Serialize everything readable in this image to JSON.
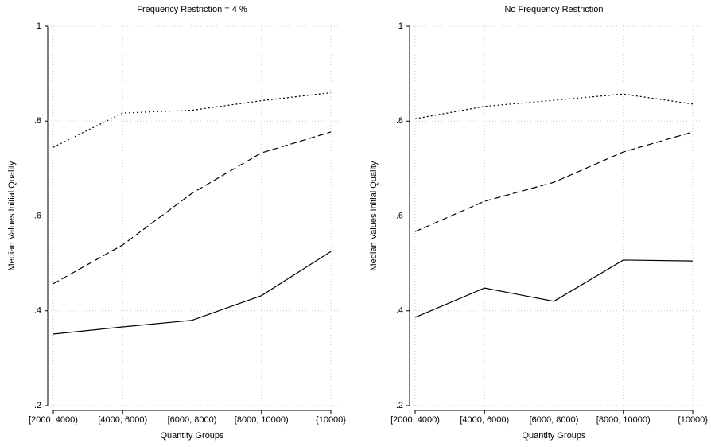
{
  "chart_data": [
    {
      "type": "line",
      "title": "Frequency Restriction = 4 %",
      "xlabel": "Quantity Groups",
      "ylabel": "Median Values Initial Quality",
      "categories": [
        "[2000, 4000)",
        "[4000, 6000)",
        "[6000, 8000)",
        "[8000, 10000)",
        "{10000}"
      ],
      "ylim": [
        0.2,
        1
      ],
      "yticks": [
        {
          "value": 0.2,
          "label": ".2"
        },
        {
          "value": 0.4,
          "label": ".4"
        },
        {
          "value": 0.6,
          "label": ".6"
        },
        {
          "value": 0.8,
          "label": ".8"
        },
        1
      ],
      "grid": true,
      "series": [
        {
          "color": "#000000",
          "dash": "dotted",
          "values": [
            0.745,
            0.817,
            0.823,
            0.843,
            0.86
          ]
        },
        {
          "color": "#000000",
          "dash": "dashed",
          "values": [
            0.457,
            0.539,
            0.648,
            0.733,
            0.777
          ]
        },
        {
          "color": "#000000",
          "dash": "solid",
          "values": [
            0.351,
            0.366,
            0.38,
            0.432,
            0.525
          ]
        }
      ]
    },
    {
      "type": "line",
      "title": "No Frequency Restriction",
      "xlabel": "Quantity Groups",
      "ylabel": "Median Values Initial Quality",
      "categories": [
        "[2000, 4000)",
        "[4000, 6000)",
        "[6000, 8000)",
        "[8000, 10000)",
        "{10000}"
      ],
      "ylim": [
        0.2,
        1
      ],
      "yticks": [
        {
          "value": 0.2,
          "label": ".2"
        },
        {
          "value": 0.4,
          "label": ".4"
        },
        {
          "value": 0.6,
          "label": ".6"
        },
        {
          "value": 0.8,
          "label": ".8"
        },
        1
      ],
      "grid": true,
      "series": [
        {
          "color": "#000000",
          "dash": "dotted",
          "values": [
            0.805,
            0.831,
            0.844,
            0.857,
            0.836
          ]
        },
        {
          "color": "#000000",
          "dash": "dashed",
          "values": [
            0.567,
            0.631,
            0.671,
            0.735,
            0.777
          ]
        },
        {
          "color": "#000000",
          "dash": "solid",
          "values": [
            0.386,
            0.448,
            0.42,
            0.507,
            0.505
          ]
        }
      ]
    }
  ]
}
